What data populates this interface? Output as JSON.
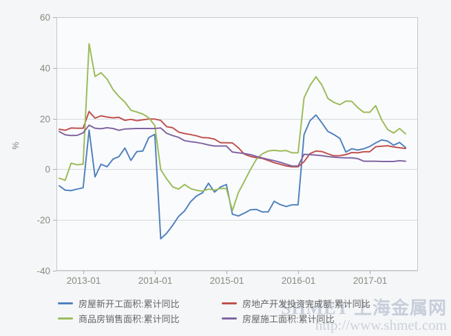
{
  "page": {
    "background": "#f4f6f8",
    "plot_background": "#fafbfd",
    "grid_color": "#d6d8da",
    "border_color": "#c3c7cb",
    "tick_color": "#a9adb2",
    "tick_label_color": "#8b887e",
    "legend_text_color": "#646464"
  },
  "watermark": {
    "brand": "SHMET 上海金属网",
    "url": "http://www.shmet.com"
  },
  "chart_data": {
    "type": "line",
    "title": "",
    "xlabel": "",
    "ylabel": "%",
    "ylim": [
      -40,
      60
    ],
    "yticks": [
      60,
      40,
      20,
      0,
      -20,
      -40
    ],
    "xticks": [
      "2013-01",
      "2014-01",
      "2015-01",
      "2016-01",
      "2017-01"
    ],
    "grid": true,
    "legend_position": "bottom",
    "x_start": "2012-09",
    "x_end": "2017-07",
    "months": [
      "2012-09",
      "2012-10",
      "2012-11",
      "2012-12",
      "2013-01",
      "2013-02",
      "2013-03",
      "2013-04",
      "2013-05",
      "2013-06",
      "2013-07",
      "2013-08",
      "2013-09",
      "2013-10",
      "2013-11",
      "2013-12",
      "2014-01",
      "2014-02",
      "2014-03",
      "2014-04",
      "2014-05",
      "2014-06",
      "2014-07",
      "2014-08",
      "2014-09",
      "2014-10",
      "2014-11",
      "2014-12",
      "2015-01",
      "2015-02",
      "2015-03",
      "2015-04",
      "2015-05",
      "2015-06",
      "2015-07",
      "2015-08",
      "2015-09",
      "2015-10",
      "2015-11",
      "2015-12",
      "2016-01",
      "2016-02",
      "2016-03",
      "2016-04",
      "2016-05",
      "2016-06",
      "2016-07",
      "2016-08",
      "2016-09",
      "2016-10",
      "2016-11",
      "2016-12",
      "2017-01",
      "2017-02",
      "2017-03",
      "2017-04",
      "2017-05",
      "2017-06",
      "2017-07"
    ],
    "series": [
      {
        "name": "房屋新开工面积:累计同比",
        "color": "#4f81bd",
        "values": [
          -6.5,
          -8.2,
          -8.4,
          -7.8,
          -7.3,
          15.5,
          -3.0,
          2.0,
          1.0,
          4.0,
          5.0,
          8.4,
          3.5,
          7.0,
          7.2,
          12.5,
          13.8,
          -27.4,
          -25.2,
          -22.1,
          -18.6,
          -16.4,
          -12.8,
          -10.5,
          -9.3,
          -5.5,
          -9.0,
          -7.0,
          -6.0,
          -17.7,
          -18.4,
          -17.3,
          -16.0,
          -15.8,
          -16.8,
          -16.8,
          -12.6,
          -13.9,
          -14.7,
          -14.0,
          -14.0,
          13.7,
          19.2,
          21.4,
          18.3,
          14.9,
          13.7,
          12.2,
          6.8,
          8.1,
          7.6,
          8.1,
          9.0,
          10.4,
          11.6,
          11.1,
          9.5,
          10.6,
          8.6
        ]
      },
      {
        "name": "房地产开发投资完成额:累计同比",
        "color": "#c0504d",
        "values": [
          15.8,
          15.4,
          16.3,
          16.2,
          16.2,
          22.8,
          20.2,
          21.1,
          20.6,
          20.3,
          20.5,
          19.3,
          19.7,
          19.2,
          19.5,
          19.8,
          19.8,
          19.3,
          16.8,
          16.4,
          14.7,
          14.1,
          13.7,
          13.2,
          12.5,
          12.4,
          11.9,
          10.5,
          10.5,
          10.4,
          8.5,
          6.0,
          5.1,
          4.6,
          4.3,
          3.5,
          2.6,
          2.0,
          1.3,
          1.0,
          1.0,
          3.0,
          6.2,
          7.2,
          7.0,
          6.1,
          5.3,
          5.4,
          5.8,
          6.6,
          6.5,
          6.9,
          6.9,
          8.9,
          9.1,
          9.3,
          8.8,
          8.5,
          8.2
        ]
      },
      {
        "name": "商品房销售面积:累计同比",
        "color": "#9bbb59",
        "values": [
          -3.5,
          -4.3,
          2.4,
          1.8,
          2.0,
          49.5,
          36.6,
          38.1,
          35.6,
          31.5,
          28.7,
          26.5,
          23.3,
          22.6,
          21.8,
          20.3,
          17.3,
          -0.1,
          -3.8,
          -6.9,
          -7.8,
          -6.0,
          -7.6,
          -8.3,
          -8.6,
          -7.8,
          -8.2,
          -7.6,
          -7.6,
          -16.3,
          -9.2,
          -4.8,
          -0.2,
          3.9,
          6.1,
          7.2,
          7.5,
          7.2,
          7.4,
          6.5,
          6.5,
          28.2,
          33.1,
          36.5,
          33.2,
          27.9,
          26.4,
          25.5,
          26.9,
          26.8,
          24.3,
          22.5,
          22.5,
          25.1,
          19.5,
          15.7,
          14.3,
          16.1,
          14.0
        ]
      },
      {
        "name": "房屋施工面积:累计同比",
        "color": "#8064a2",
        "values": [
          14.9,
          13.6,
          13.3,
          13.4,
          14.4,
          17.4,
          16.2,
          16.0,
          16.4,
          16.1,
          15.4,
          15.9,
          16.0,
          16.1,
          16.1,
          16.1,
          16.1,
          16.3,
          14.2,
          13.3,
          12.6,
          11.3,
          10.9,
          10.6,
          10.2,
          9.6,
          9.2,
          9.2,
          9.2,
          6.8,
          6.5,
          6.2,
          5.8,
          5.1,
          4.5,
          3.9,
          3.4,
          2.8,
          2.0,
          1.3,
          1.3,
          5.9,
          5.8,
          5.6,
          5.4,
          5.0,
          4.8,
          4.6,
          4.5,
          4.5,
          4.2,
          3.2,
          3.2,
          3.2,
          3.1,
          3.1,
          3.1,
          3.4,
          3.2
        ]
      }
    ]
  }
}
